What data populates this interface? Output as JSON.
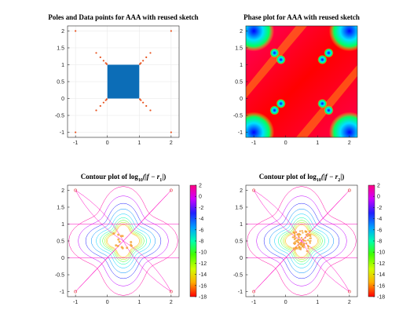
{
  "chart_data": [
    {
      "id": "poles",
      "type": "scatter",
      "title": "Poles and Data points for AAA with reused sketch",
      "xlim": [
        -1.25,
        2.25
      ],
      "ylim": [
        -1.15,
        2.15
      ],
      "xticks": [
        -1,
        0,
        1,
        2
      ],
      "yticks": [
        -1,
        -0.5,
        0,
        0.5,
        1,
        1.5,
        2
      ],
      "grid": true,
      "data_region": {
        "xmin": 0,
        "xmax": 1,
        "ymin": 0,
        "ymax": 1,
        "color": "#0c6db7",
        "label": "data points"
      },
      "poles": [
        [
          -1,
          2
        ],
        [
          2,
          2
        ],
        [
          -1,
          -1
        ],
        [
          2,
          -1
        ],
        [
          -0.35,
          1.35
        ],
        [
          -0.22,
          1.22
        ],
        [
          -0.12,
          1.12
        ],
        [
          -0.05,
          1.05
        ],
        [
          -0.02,
          1.02
        ],
        [
          1.35,
          1.35
        ],
        [
          1.22,
          1.22
        ],
        [
          1.12,
          1.12
        ],
        [
          1.05,
          1.05
        ],
        [
          1.02,
          1.02
        ],
        [
          -0.35,
          -0.35
        ],
        [
          -0.22,
          -0.22
        ],
        [
          -0.12,
          -0.12
        ],
        [
          -0.05,
          -0.05
        ],
        [
          -0.02,
          -0.02
        ],
        [
          1.35,
          -0.35
        ],
        [
          1.22,
          -0.22
        ],
        [
          1.12,
          -0.12
        ],
        [
          1.05,
          -0.05
        ],
        [
          1.02,
          -0.02
        ]
      ],
      "pole_color": "#e8531f"
    },
    {
      "id": "phase",
      "type": "heatmap",
      "title": "Phase plot for AAA with reused sketch",
      "xlim": [
        -1.25,
        2.25
      ],
      "ylim": [
        -1.15,
        2.15
      ],
      "xticks": [
        -1,
        0,
        1,
        2
      ],
      "yticks": [
        -1,
        -0.5,
        0,
        0.5,
        1,
        1.5,
        2
      ]
    },
    {
      "id": "contour1",
      "type": "heatmap",
      "title": "Contour plot of log",
      "title_sub": "10",
      "title_tail": "(|f − r",
      "title_idx": "1",
      "title_end": "|)",
      "xlim": [
        -1.25,
        2.25
      ],
      "ylim": [
        -1.15,
        2.15
      ],
      "xticks": [
        -1,
        0,
        1,
        2
      ],
      "yticks": [
        -1,
        -0.5,
        0,
        0.5,
        1,
        1.5,
        2
      ],
      "colorbar_ticks": [
        2,
        0,
        -2,
        -4,
        -6,
        -8,
        -10,
        -12,
        -14,
        -16,
        -18
      ],
      "clim": [
        -18,
        2
      ]
    },
    {
      "id": "contour2",
      "type": "heatmap",
      "title": "Contour plot of log",
      "title_sub": "10",
      "title_tail": "(|f − r",
      "title_idx": "2",
      "title_end": "|)",
      "xlim": [
        -1.25,
        2.25
      ],
      "ylim": [
        -1.15,
        2.15
      ],
      "xticks": [
        -1,
        0,
        1,
        2
      ],
      "yticks": [
        -1,
        -0.5,
        0,
        0.5,
        1,
        1.5,
        2
      ],
      "colorbar_ticks": [
        2,
        0,
        -2,
        -4,
        -6,
        -8,
        -10,
        -12,
        -14,
        -16,
        -18
      ],
      "clim": [
        -18,
        2
      ]
    }
  ]
}
